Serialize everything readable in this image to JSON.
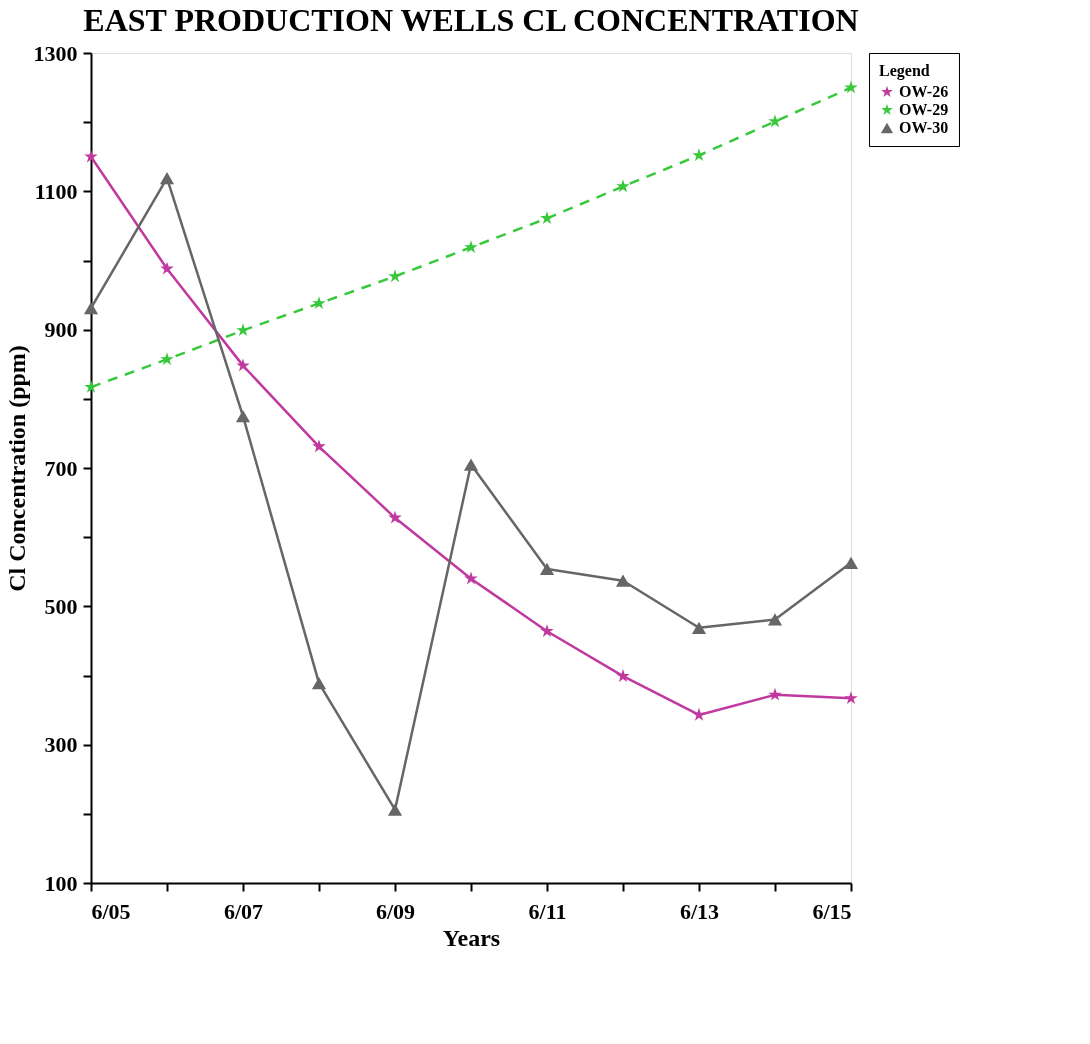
{
  "chart_data": {
    "type": "line",
    "title": "EAST PRODUCTION WELLS CL CONCENTRATION",
    "xlabel": "Years",
    "ylabel": "Cl Concentration (ppm)",
    "legend_title": "Legend",
    "legend": "right",
    "grid": false,
    "categories": [
      "6/05",
      null,
      "6/07",
      null,
      "6/09",
      null,
      "6/11",
      null,
      "6/13",
      null,
      "6/15"
    ],
    "ylim": [
      100,
      1300
    ],
    "yticks": [
      100,
      {
        "value": 200,
        "label": null
      },
      300,
      {
        "value": 400,
        "label": null
      },
      500,
      {
        "value": 600,
        "label": null
      },
      700,
      {
        "value": 800,
        "label": null
      },
      900,
      {
        "value": 1000,
        "label": null
      },
      1100,
      {
        "value": 1200,
        "label": null
      },
      1300
    ],
    "series": [
      {
        "name": "OW-26",
        "color": "#c0399f",
        "marker": "star",
        "line_style": "solid",
        "values": [
          1150,
          988,
          848,
          731,
          628,
          540,
          464,
          399,
          343,
          372,
          367
        ]
      },
      {
        "name": "OW-29",
        "color": "#39c83c",
        "marker": "star",
        "line_style": "dashed",
        "values": [
          817,
          857,
          899,
          938,
          977,
          1019,
          1061,
          1107,
          1152,
          1201,
          1250
        ]
      },
      {
        "name": "OW-30",
        "color": "#666666",
        "marker": "triangle",
        "line_style": "solid",
        "values": [
          931,
          1119,
          775,
          389,
          206,
          705,
          554,
          537,
          469,
          481,
          563
        ]
      }
    ]
  }
}
